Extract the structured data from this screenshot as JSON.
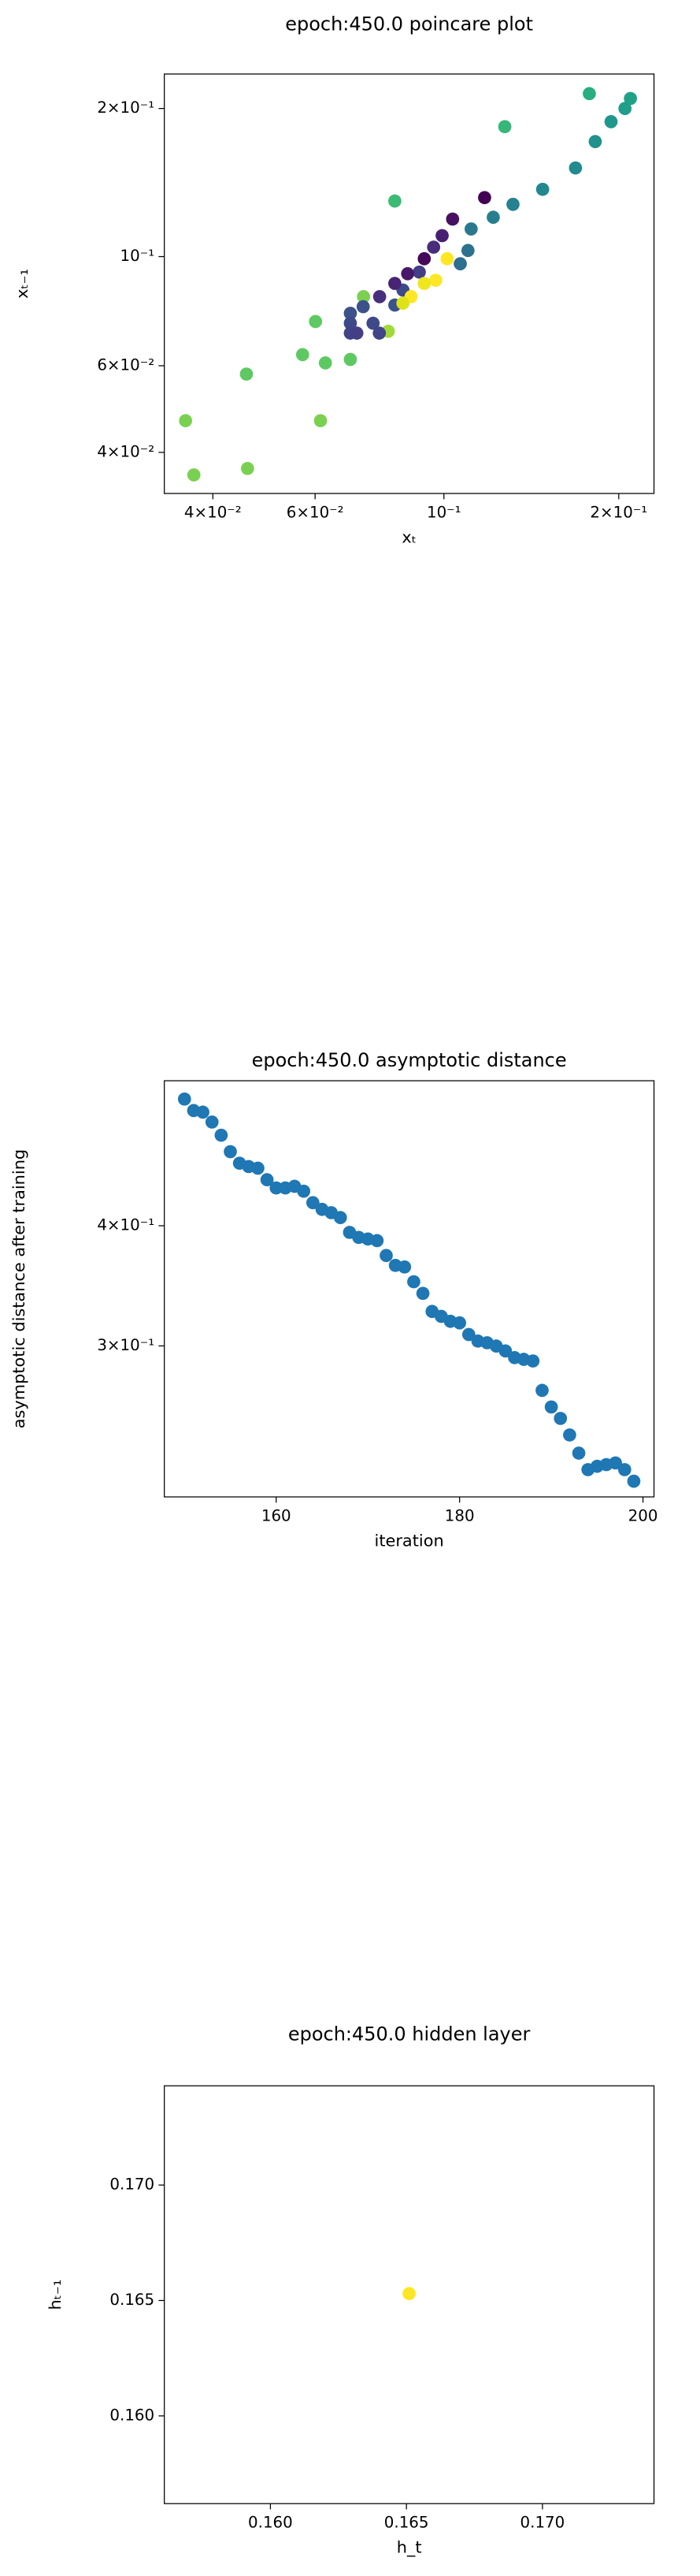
{
  "chart_data": [
    {
      "type": "scatter",
      "title": "epoch:450.0 poincare plot",
      "x_label": "xₜ",
      "y_label": "xₜ₋₁",
      "xlog": true,
      "ylog": true,
      "xlim": [
        0.033,
        0.23
      ],
      "ylim": [
        0.033,
        0.235
      ],
      "xticks": [
        {
          "value": 0.04,
          "label": "4×10⁻²"
        },
        {
          "value": 0.06,
          "label": "6×10⁻²"
        },
        {
          "value": 0.1,
          "label": "10⁻¹"
        },
        {
          "value": 0.2,
          "label": "2×10⁻¹"
        }
      ],
      "yticks": [
        {
          "value": 0.04,
          "label": "4×10⁻²"
        },
        {
          "value": 0.06,
          "label": "6×10⁻²"
        },
        {
          "value": 0.1,
          "label": "10⁻¹"
        },
        {
          "value": 0.2,
          "label": "2×10⁻¹"
        }
      ],
      "x": [
        0.0359,
        0.0371,
        0.0457,
        0.0459,
        0.0571,
        0.0601,
        0.0613,
        0.0625,
        0.069,
        0.0727,
        0.0823,
        0.0802,
        0.1273,
        0.178,
        0.2095,
        0.205,
        0.194,
        0.1822,
        0.1685,
        0.1479,
        0.1315,
        0.1216,
        0.1114,
        0.11,
        0.1067,
        0.069,
        0.069,
        0.069,
        0.0708,
        0.0726,
        0.0755,
        0.0774,
        0.0823,
        0.085,
        0.0907,
        0.096,
        0.0993,
        0.1035,
        0.1175,
        0.0925,
        0.0866,
        0.0823,
        0.0775,
        0.0878,
        0.0968,
        0.1013,
        0.085,
        0.0925
      ],
      "values": [
        0.0464,
        0.036,
        0.0577,
        0.0371,
        0.0632,
        0.0738,
        0.0464,
        0.0608,
        0.0618,
        0.0829,
        0.1297,
        0.0705,
        0.1837,
        0.2144,
        0.2096,
        0.2,
        0.188,
        0.1713,
        0.1514,
        0.137,
        0.1277,
        0.1202,
        0.1138,
        0.1029,
        0.0967,
        0.0767,
        0.0732,
        0.0699,
        0.0699,
        0.0791,
        0.0732,
        0.0699,
        0.0797,
        0.0855,
        0.093,
        0.1045,
        0.1103,
        0.1192,
        0.1318,
        0.099,
        0.0923,
        0.0882,
        0.0829,
        0.0829,
        0.0895,
        0.099,
        0.0804,
        0.0882
      ],
      "colors": [
        "#7ad151",
        "#7ad151",
        "#5ec962",
        "#7ad151",
        "#5ec962",
        "#5ec962",
        "#7ad151",
        "#5ec962",
        "#5ec962",
        "#7ad151",
        "#3bbb75",
        "#a0da39",
        "#35b779",
        "#28ae80",
        "#1fa187",
        "#1f9e89",
        "#1f978b",
        "#21918c",
        "#228b8d",
        "#23888e",
        "#26828e",
        "#277f8e",
        "#2a788e",
        "#2c728e",
        "#2e6e8e",
        "#3b528b",
        "#3e4989",
        "#414487",
        "#433e85",
        "#3b528b",
        "#3e4989",
        "#414487",
        "#3b528b",
        "#3e4989",
        "#433e85",
        "#472d7b",
        "#481f70",
        "#471063",
        "#440154",
        "#46075a",
        "#481769",
        "#482475",
        "#472f7d",
        "#fde725",
        "#fde725",
        "#fde725",
        "#dde318",
        "#f1e51d"
      ]
    },
    {
      "type": "scatter",
      "title": "epoch:450.0 asymptotic distance",
      "x_label": "iteration",
      "y_label": "asymptotic distance after training",
      "xlog": false,
      "ylog": true,
      "xlim": [
        147.8,
        201.2
      ],
      "ylim": [
        0.209,
        0.566
      ],
      "xticks": [
        160,
        180,
        200
      ],
      "yticks": [
        {
          "value": 0.3,
          "label": "3×10⁻¹"
        },
        {
          "value": 0.4,
          "label": "4×10⁻¹"
        }
      ],
      "color": "#1f77b4",
      "x": [
        150,
        151,
        152,
        153,
        154,
        155,
        156,
        157,
        158,
        159,
        160,
        161,
        162,
        163,
        164,
        165,
        166,
        167,
        168,
        169,
        170,
        171,
        172,
        173,
        174,
        175,
        176,
        177,
        178,
        179,
        180,
        181,
        182,
        183,
        184,
        185,
        186,
        187,
        188,
        189,
        190,
        191,
        192,
        193,
        194,
        195,
        196,
        197,
        198,
        199
      ],
      "values": [
        0.5417,
        0.527,
        0.525,
        0.5127,
        0.4968,
        0.4776,
        0.4646,
        0.4609,
        0.4591,
        0.4466,
        0.4379,
        0.4379,
        0.4396,
        0.4345,
        0.4227,
        0.416,
        0.4127,
        0.4079,
        0.3937,
        0.389,
        0.3875,
        0.386,
        0.3725,
        0.3638,
        0.3624,
        0.3498,
        0.3402,
        0.3258,
        0.322,
        0.3182,
        0.317,
        0.3083,
        0.3035,
        0.3023,
        0.2999,
        0.2964,
        0.2917,
        0.2905,
        0.2894,
        0.2697,
        0.2592,
        0.2522,
        0.2424,
        0.2321,
        0.2231,
        0.2249,
        0.2258,
        0.2267,
        0.2231,
        0.217
      ]
    },
    {
      "type": "scatter",
      "title": "epoch:450.0 hidden layer",
      "x_label": "h_t",
      "y_label": "hₜ₋₁",
      "xlog": false,
      "ylog": false,
      "xlim": [
        0.1561,
        0.1741
      ],
      "ylim": [
        0.1562,
        0.1743
      ],
      "xticks": [
        {
          "value": 0.16,
          "label": "0.160"
        },
        {
          "value": 0.165,
          "label": "0.165"
        },
        {
          "value": 0.17,
          "label": "0.170"
        }
      ],
      "yticks": [
        {
          "value": 0.16,
          "label": "0.160"
        },
        {
          "value": 0.165,
          "label": "0.165"
        },
        {
          "value": 0.17,
          "label": "0.170"
        }
      ],
      "color": "#fde725",
      "x": [
        0.1651
      ],
      "values": [
        0.1653
      ]
    }
  ]
}
